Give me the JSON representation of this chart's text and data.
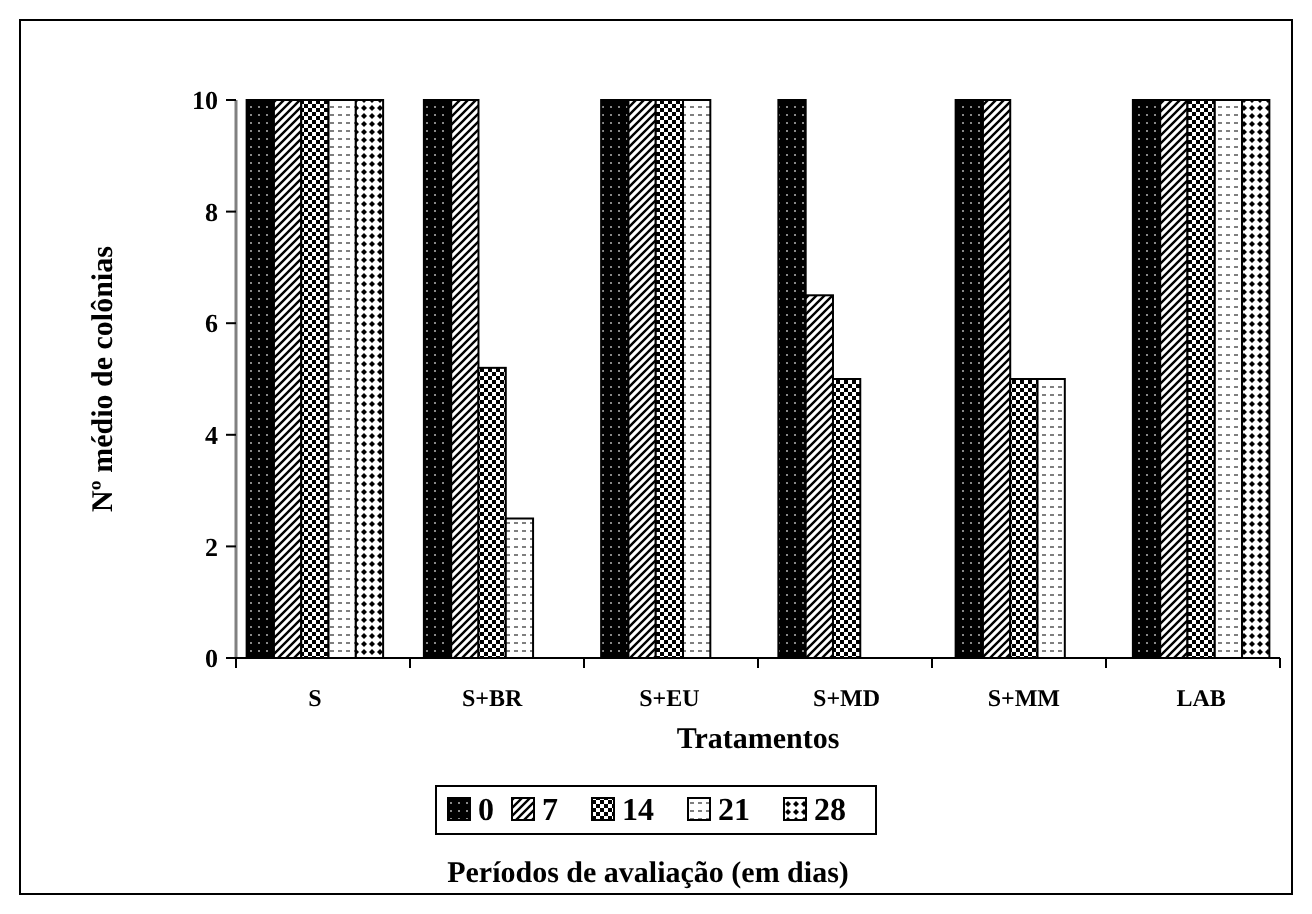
{
  "chart_data": {
    "type": "bar",
    "xlabel": "Tratamentos",
    "ylabel": "Nº médio de colônias",
    "legend_title": "Períodos de avaliação (em dias)",
    "categories": [
      "S",
      "S+BR",
      "S+EU",
      "S+MD",
      "S+MM",
      "LAB"
    ],
    "series": [
      {
        "name": "0",
        "color": "#000000",
        "values": [
          10,
          10,
          10,
          10,
          10,
          10
        ]
      },
      {
        "name": "7",
        "color": "#000000",
        "values": [
          10,
          10,
          10,
          6.5,
          10,
          10
        ]
      },
      {
        "name": "14",
        "color": "#000000",
        "values": [
          10,
          5.2,
          10,
          5.0,
          5.0,
          10
        ]
      },
      {
        "name": "21",
        "color": "#000000",
        "values": [
          10,
          2.5,
          10,
          0,
          5.0,
          10
        ]
      },
      {
        "name": "28",
        "color": "#000000",
        "values": [
          10,
          0,
          0,
          0,
          0,
          10
        ]
      }
    ],
    "ylim": [
      0,
      10
    ],
    "yticks": [
      0,
      2,
      4,
      6,
      8,
      10
    ],
    "grid": false,
    "legend": "bottom"
  }
}
